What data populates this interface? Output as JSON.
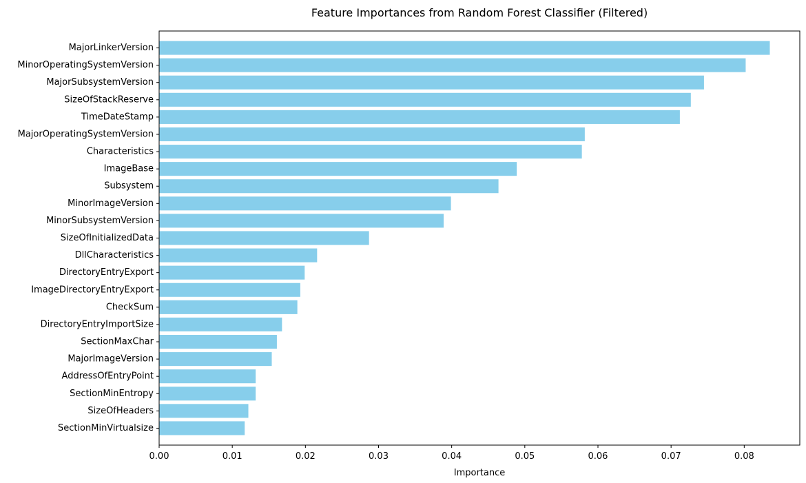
{
  "chart_data": {
    "type": "bar",
    "orientation": "horizontal",
    "title": "Feature Importances from Random Forest Classifier (Filtered)",
    "xlabel": "Importance",
    "ylabel": "",
    "xlim": [
      0,
      0.0876
    ],
    "xticks": [
      "0.00",
      "0.01",
      "0.02",
      "0.03",
      "0.04",
      "0.05",
      "0.06",
      "0.07",
      "0.08"
    ],
    "bar_color": "#87CEEB",
    "grid": false,
    "categories": [
      "MajorLinkerVersion",
      "MinorOperatingSystemVersion",
      "MajorSubsystemVersion",
      "SizeOfStackReserve",
      "TimeDateStamp",
      "MajorOperatingSystemVersion",
      "Characteristics",
      "ImageBase",
      "Subsystem",
      "MinorImageVersion",
      "MinorSubsystemVersion",
      "SizeOfInitializedData",
      "DllCharacteristics",
      "DirectoryEntryExport",
      "ImageDirectoryEntryExport",
      "CheckSum",
      "DirectoryEntryImportSize",
      "SectionMaxChar",
      "MajorImageVersion",
      "AddressOfEntryPoint",
      "SectionMinEntropy",
      "SizeOfHeaders",
      "SectionMinVirtualsize"
    ],
    "values": [
      0.0835,
      0.0802,
      0.0745,
      0.0727,
      0.0712,
      0.0582,
      0.0578,
      0.0489,
      0.0464,
      0.0399,
      0.0389,
      0.0287,
      0.0216,
      0.0199,
      0.0193,
      0.0189,
      0.0168,
      0.0161,
      0.0154,
      0.0132,
      0.0132,
      0.0122,
      0.0117
    ]
  }
}
